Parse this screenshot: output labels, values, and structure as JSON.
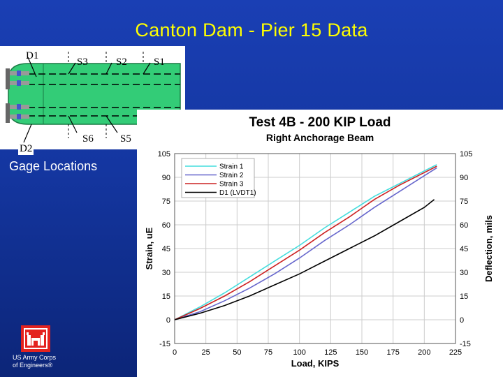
{
  "slide": {
    "title": "Canton Dam - Pier 15 Data",
    "caption": "Gage Locations",
    "logo_line1": "US Army Corps",
    "logo_line2": "of Engineers®"
  },
  "gages": {
    "d1": "D1",
    "d2": "D2",
    "s1": "S1",
    "s2": "S2",
    "s3": "S3",
    "s5": "S5",
    "s6": "S6"
  },
  "colors": {
    "background": "#1436a0",
    "title": "#ffff00",
    "beam": "#33cc77",
    "logo": "#e4231f"
  },
  "chart_data": {
    "type": "line",
    "title": "Test 4B - 200 KIP Load",
    "subtitle": "Right Anchorage Beam",
    "xlabel": "Load, KIPS",
    "ylabel": "Strain, uE",
    "y2label": "Deflection, mils",
    "xlim": [
      0,
      225
    ],
    "ylim": [
      -15,
      105
    ],
    "y2lim": [
      -15,
      105
    ],
    "xticks": [
      "0",
      "25",
      "50",
      "75",
      "100",
      "125",
      "150",
      "175",
      "200",
      "225"
    ],
    "yticks": [
      "-15",
      "0",
      "15",
      "30",
      "45",
      "60",
      "75",
      "90",
      "105"
    ],
    "legend_position": "top-left",
    "series": [
      {
        "name": "Strain 1",
        "color": "#44dddd",
        "x": [
          0,
          20,
          40,
          60,
          80,
          100,
          120,
          140,
          160,
          180,
          200,
          210
        ],
        "y": [
          0,
          8,
          17,
          27,
          37,
          47,
          58,
          68,
          78,
          86,
          94,
          98
        ]
      },
      {
        "name": "Strain 2",
        "color": "#6666cc",
        "x": [
          0,
          20,
          40,
          60,
          80,
          100,
          120,
          140,
          160,
          180,
          200,
          210
        ],
        "y": [
          0,
          5,
          12,
          20,
          29,
          39,
          50,
          60,
          71,
          81,
          91,
          96
        ]
      },
      {
        "name": "Strain 3",
        "color": "#cc2222",
        "x": [
          0,
          20,
          40,
          60,
          80,
          100,
          120,
          140,
          160,
          180,
          200,
          210
        ],
        "y": [
          0,
          7,
          15,
          24,
          34,
          44,
          55,
          65,
          76,
          85,
          93,
          97
        ]
      },
      {
        "name": "D1 (LVDT1)",
        "color": "#000000",
        "x": [
          0,
          20,
          40,
          60,
          80,
          100,
          120,
          140,
          160,
          180,
          200,
          208
        ],
        "y": [
          0,
          4,
          9,
          15,
          22,
          29,
          37,
          45,
          53,
          62,
          71,
          76
        ]
      }
    ]
  }
}
